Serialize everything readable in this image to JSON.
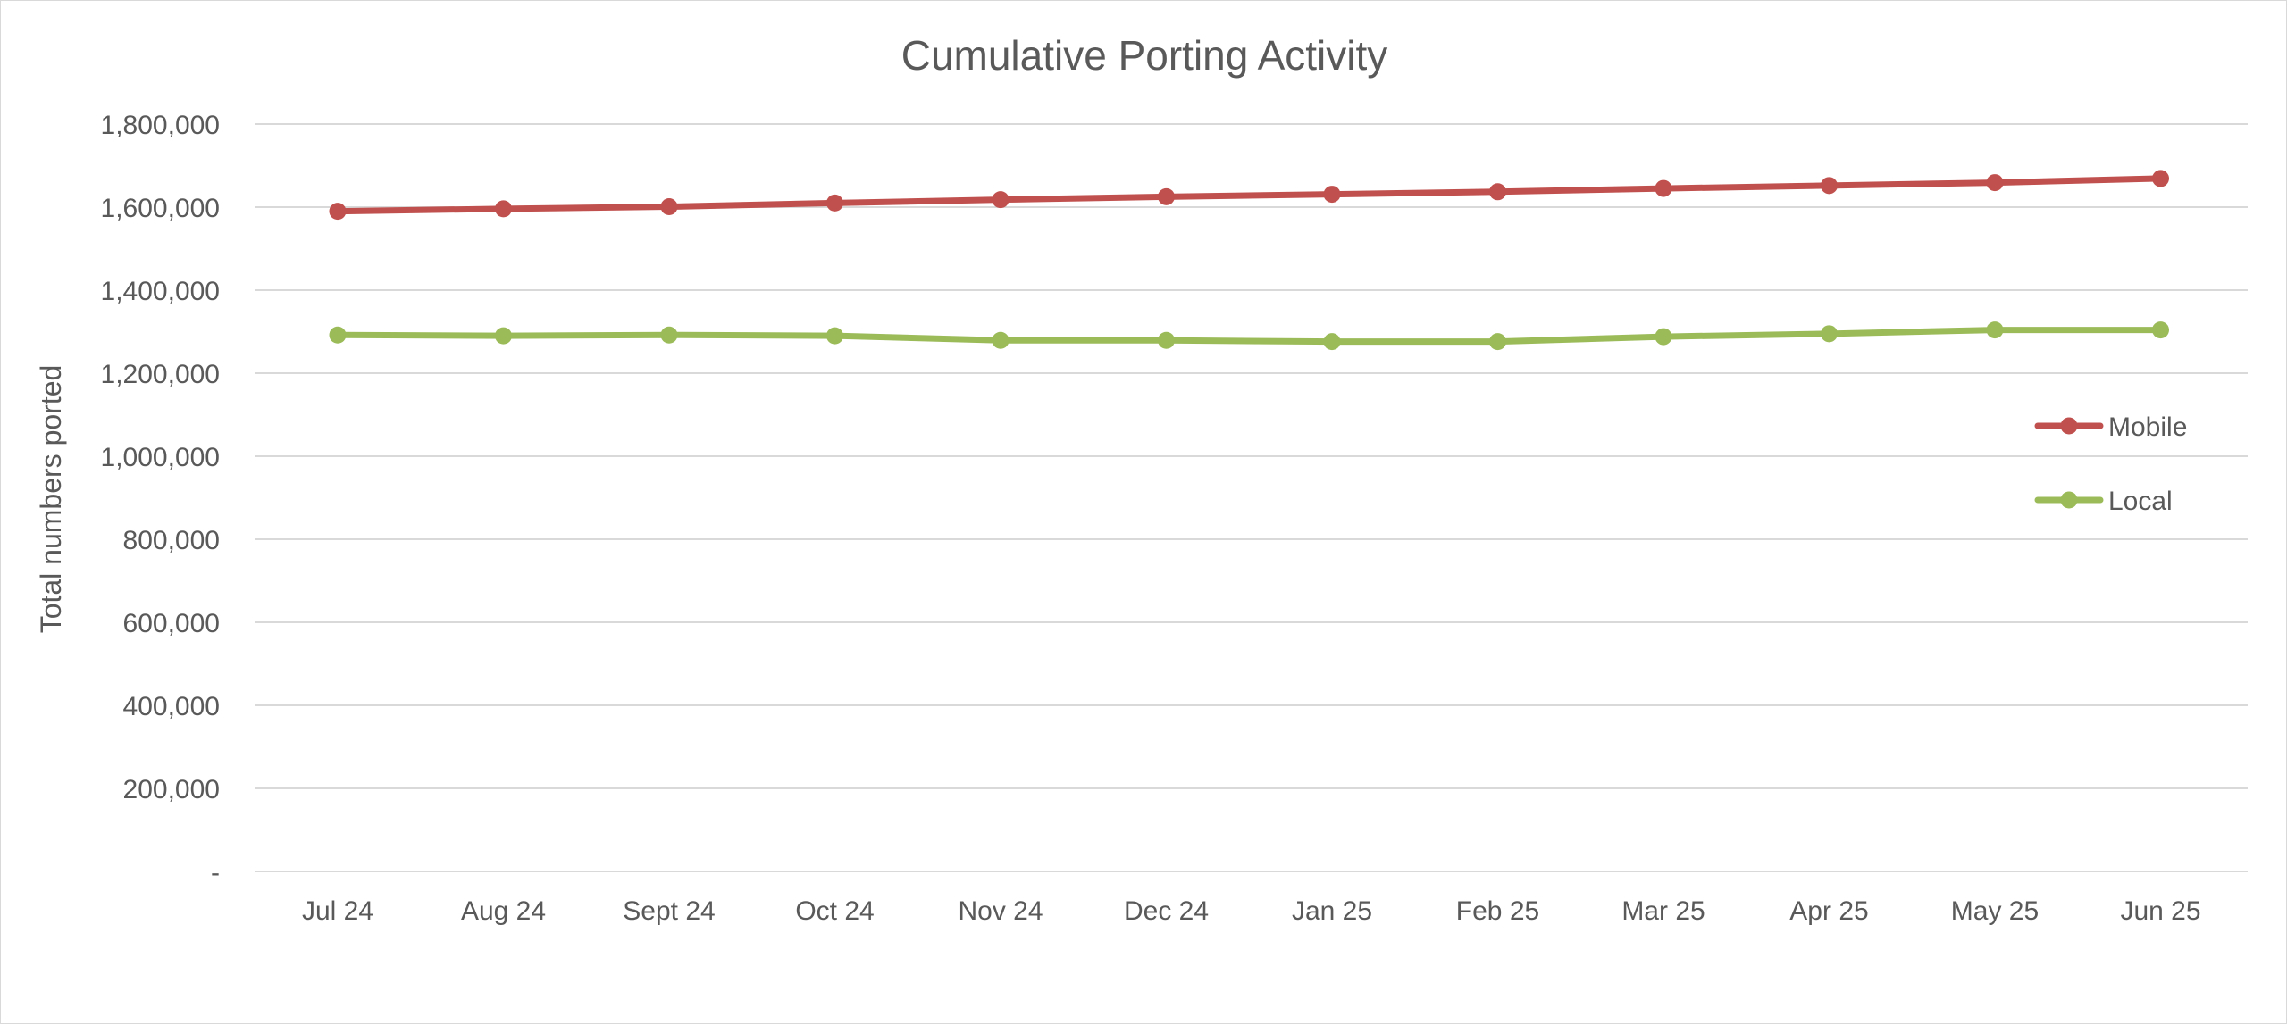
{
  "chart_data": {
    "type": "line",
    "title": "Cumulative Porting Activity",
    "xlabel": "",
    "ylabel": "Total numbers ported",
    "categories": [
      "Jul 24",
      "Aug 24",
      "Sept 24",
      "Oct 24",
      "Nov 24",
      "Dec 24",
      "Jan 25",
      "Feb 25",
      "Mar 25",
      "Apr 25",
      "May 25",
      "Jun 25"
    ],
    "ylim": [
      0,
      1800000
    ],
    "y_ticks": [
      0,
      200000,
      400000,
      600000,
      800000,
      1000000,
      1200000,
      1400000,
      1600000,
      1800000
    ],
    "y_tick_labels": [
      "-",
      "200,000",
      "400,000",
      "600,000",
      "800,000",
      "1,000,000",
      "1,200,000",
      "1,400,000",
      "1,600,000",
      "1,800,000"
    ],
    "grid": true,
    "legend_position": "right",
    "series": [
      {
        "name": "Mobile",
        "color": "#c0504d",
        "values": [
          1590000,
          1596000,
          1601000,
          1610000,
          1618000,
          1625000,
          1631000,
          1637000,
          1645000,
          1652000,
          1659000,
          1669000
        ]
      },
      {
        "name": "Local",
        "color": "#9bbb59",
        "values": [
          1292000,
          1290000,
          1292000,
          1290000,
          1279000,
          1279000,
          1276000,
          1276000,
          1288000,
          1295000,
          1304000,
          1304000
        ]
      }
    ]
  }
}
